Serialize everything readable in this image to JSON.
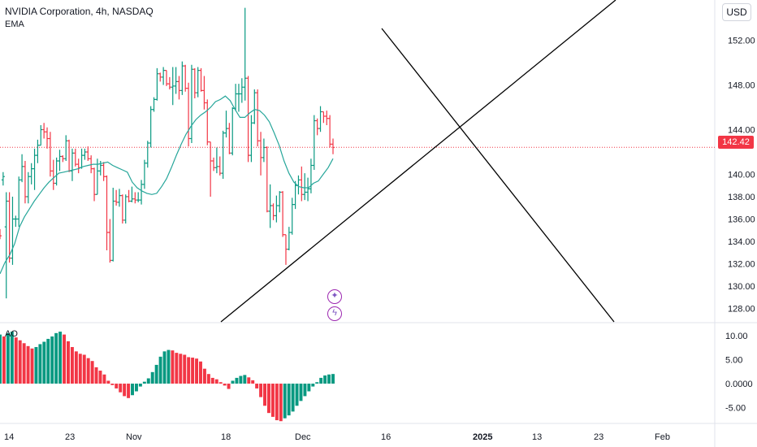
{
  "header": {
    "title": "NVIDIA Corporation, 4h, NASDAQ",
    "indicator": "EMA",
    "currency_button": "USD"
  },
  "oscillator": {
    "label": "AO"
  },
  "last_price": "142.42",
  "icons": {
    "sparkle": "sparkle-icon",
    "lightning": "lightning-icon"
  },
  "colors": {
    "up": "#089981",
    "down": "#f23645",
    "ema": "#26a69a",
    "drawing": "#000000",
    "price_line": "#f23645"
  },
  "axes": {
    "price_ticks": [
      "152.00",
      "148.00",
      "144.00",
      "140.00",
      "138.00",
      "136.00",
      "134.00",
      "132.00",
      "130.00",
      "128.00"
    ],
    "ao_ticks": [
      "10.00",
      "5.00",
      "0.0000",
      "-5.00"
    ],
    "x_ticks": [
      {
        "label": "14",
        "bold": false
      },
      {
        "label": "23",
        "bold": false
      },
      {
        "label": "Nov",
        "bold": false
      },
      {
        "label": "18",
        "bold": false
      },
      {
        "label": "Dec",
        "bold": false
      },
      {
        "label": "16",
        "bold": false
      },
      {
        "label": "2025",
        "bold": true
      },
      {
        "label": "13",
        "bold": false
      },
      {
        "label": "23",
        "bold": false
      },
      {
        "label": "Feb",
        "bold": false
      }
    ]
  },
  "chart_data": {
    "type": "ohlc",
    "price_range": [
      126.8,
      155.6
    ],
    "ao_range": [
      -8.1,
      12.5
    ],
    "candles": [
      [
        135.3,
        135.1,
        134.2,
        134.5
      ],
      [
        139.5,
        140.2,
        139,
        139.8
      ],
      [
        135.3,
        138.4,
        128.9,
        137.6
      ],
      [
        137.6,
        138.4,
        132.1,
        132.5
      ],
      [
        132.5,
        138,
        131.9,
        136
      ],
      [
        136,
        136.3,
        135.3,
        136
      ],
      [
        136,
        139.8,
        135.3,
        139.5
      ],
      [
        139.5,
        141.8,
        139.3,
        140.7
      ],
      [
        140.7,
        141.2,
        137.4,
        138
      ],
      [
        138,
        140.2,
        137.4,
        139.8
      ],
      [
        139.8,
        141,
        139.1,
        140.5
      ],
      [
        140.5,
        142.3,
        138.6,
        141.7
      ],
      [
        141.7,
        143.1,
        141,
        142.6
      ],
      [
        142.6,
        144.4,
        142.6,
        144
      ],
      [
        144,
        144.6,
        143.2,
        143.8
      ],
      [
        143.8,
        144.2,
        142.3,
        143.2
      ],
      [
        143.2,
        143.8,
        139.8,
        140.3
      ],
      [
        140.3,
        141.3,
        138.6,
        139.2
      ],
      [
        139.2,
        141.5,
        139,
        141.2
      ],
      [
        141.2,
        142.2,
        140.3,
        141.6
      ],
      [
        141.6,
        141.7,
        141.1,
        141.4
      ],
      [
        141.4,
        143.5,
        141.2,
        143
      ],
      [
        143,
        143.1,
        140.2,
        140.3
      ],
      [
        140.3,
        142.3,
        139.4,
        141.9
      ],
      [
        141.9,
        142.3,
        140.7,
        140.9
      ],
      [
        140.9,
        141.4,
        140.1,
        140.6
      ],
      [
        140.6,
        142.3,
        140.5,
        141.7
      ],
      [
        141.7,
        142.3,
        141.3,
        142
      ],
      [
        142,
        142.5,
        141.2,
        141.4
      ],
      [
        141.4,
        141.7,
        140.1,
        140.5
      ],
      [
        140.5,
        140.6,
        137.6,
        138.2
      ],
      [
        138.2,
        141.4,
        138.2,
        140.3
      ],
      [
        140.3,
        141.2,
        139.9,
        140.8
      ],
      [
        140.8,
        141.1,
        139.4,
        139.8
      ],
      [
        139.8,
        139.9,
        133.2,
        134.8
      ],
      [
        134.8,
        136,
        132.1,
        132.3
      ],
      [
        132.3,
        138.8,
        132.2,
        137.6
      ],
      [
        137.6,
        138.6,
        137.2,
        137.5
      ],
      [
        137.5,
        138.7,
        137.1,
        138.1
      ],
      [
        138.1,
        138.2,
        135.6,
        135.9
      ],
      [
        135.9,
        138.2,
        135.6,
        138
      ],
      [
        138,
        138.6,
        137.5,
        137.6
      ],
      [
        137.6,
        138.9,
        137.5,
        137.8
      ],
      [
        137.8,
        138.4,
        137.4,
        137.7
      ],
      [
        137.7,
        138.4,
        137.5,
        137.7
      ],
      [
        137.7,
        139.5,
        137.3,
        139.1
      ],
      [
        139.1,
        141.3,
        138.7,
        141
      ],
      [
        141,
        143,
        140.6,
        142.8
      ],
      [
        142.8,
        146.1,
        142.4,
        145.8
      ],
      [
        145.8,
        146.9,
        145.6,
        146.7
      ],
      [
        146.7,
        149.5,
        146.6,
        149
      ],
      [
        149,
        149.1,
        148.3,
        148.7
      ],
      [
        148.7,
        149.6,
        148,
        149.3
      ],
      [
        149.3,
        149.3,
        147.9,
        148.1
      ],
      [
        148.1,
        148.7,
        147.6,
        147.8
      ],
      [
        147.8,
        149.6,
        146.2,
        147.9
      ],
      [
        147.9,
        149.6,
        147.2,
        148.3
      ],
      [
        148.3,
        148.8,
        146.7,
        147.5
      ],
      [
        147.5,
        150.1,
        147.1,
        149.7
      ],
      [
        149.7,
        149.8,
        147.4,
        147.7
      ],
      [
        147.7,
        148.2,
        142.5,
        143.2
      ],
      [
        143.2,
        149.8,
        142.8,
        149.4
      ],
      [
        149.4,
        149.5,
        146.8,
        147.3
      ],
      [
        147.3,
        149.6,
        146.9,
        149.3
      ],
      [
        149.3,
        149.5,
        147.4,
        147.5
      ],
      [
        147.5,
        148.8,
        145.8,
        146.4
      ],
      [
        146.4,
        146.7,
        142.6,
        142.9
      ],
      [
        142.9,
        142.9,
        138,
        141.2
      ],
      [
        141.2,
        141.5,
        140.3,
        140.6
      ],
      [
        140.6,
        142.4,
        140.1,
        140.7
      ],
      [
        140.7,
        141.6,
        139.9,
        140.1
      ],
      [
        140.1,
        143.9,
        139.6,
        143.7
      ],
      [
        143.7,
        145.7,
        143.3,
        144.1
      ],
      [
        144.1,
        144.6,
        141.8,
        141.9
      ],
      [
        141.9,
        146,
        141.7,
        145.9
      ],
      [
        145.9,
        148.1,
        145.7,
        147.2
      ],
      [
        147.2,
        148.1,
        145.6,
        147.2
      ],
      [
        147.2,
        148.6,
        146.4,
        147.8
      ],
      [
        147.8,
        154.9,
        146.6,
        148.6
      ],
      [
        148.6,
        148.8,
        141.1,
        141.7
      ],
      [
        141.7,
        145.3,
        141.1,
        144.6
      ],
      [
        144.6,
        147.6,
        144.5,
        147.3
      ],
      [
        147.3,
        147.6,
        142.5,
        143
      ],
      [
        143,
        143.8,
        139.9,
        141.5
      ],
      [
        141.5,
        143.2,
        141.1,
        142.4
      ],
      [
        142.4,
        142.5,
        136.6,
        136.7
      ],
      [
        136.7,
        139.1,
        135.2,
        137.2
      ],
      [
        137.2,
        137.4,
        135.9,
        136.3
      ],
      [
        136.3,
        138.1,
        135.7,
        137.2
      ],
      [
        137.2,
        138.5,
        136.6,
        138.4
      ],
      [
        138.4,
        138.5,
        134.4,
        134.6
      ],
      [
        134.6,
        134.6,
        131.9,
        133.3
      ],
      [
        133.3,
        135.3,
        133.2,
        134.8
      ],
      [
        134.8,
        137.9,
        134.6,
        137.3
      ],
      [
        137.3,
        139.4,
        136.9,
        139
      ],
      [
        139,
        139.9,
        138.2,
        139.5
      ],
      [
        139.5,
        140.7,
        137.6,
        138.2
      ],
      [
        138.2,
        140.1,
        137.7,
        138.4
      ],
      [
        138.4,
        139.7,
        137.6,
        138.7
      ],
      [
        138.7,
        141.4,
        138.3,
        140.8
      ],
      [
        140.8,
        145.3,
        140.4,
        144.8
      ],
      [
        144.8,
        145,
        143.5,
        144.1
      ],
      [
        144.1,
        146.1,
        143.8,
        145.6
      ],
      [
        145.6,
        145.6,
        144.6,
        145.2
      ],
      [
        145.2,
        145.7,
        144.4,
        145
      ],
      [
        145,
        145.3,
        142.4,
        142.7
      ],
      [
        142.7,
        143.2,
        141.8,
        142.4
      ]
    ],
    "ema": [
      131.1,
      132.1,
      132.8,
      133.8,
      135.3,
      136.2,
      136.9,
      137.6,
      138.2,
      138.8,
      139.3,
      139.7,
      140.1,
      140.2,
      140.3,
      140.4,
      140.5,
      140.7,
      140.8,
      140.9,
      140.9,
      141,
      141.1,
      140.8,
      140.6,
      140.4,
      140.2,
      139.3,
      138.8,
      138.5,
      138.3,
      138.2,
      138.3,
      138.9,
      139.6,
      140.6,
      141.7,
      142.7,
      143.6,
      144.3,
      144.9,
      145.3,
      145.6,
      146,
      146.5,
      146.7,
      147,
      146.6,
      145.8,
      145.1,
      145.1,
      145.5,
      145.8,
      145.7,
      145.3,
      144.7,
      143.7,
      142.6,
      141.2,
      140.1,
      139.3,
      138.9,
      138.8,
      138.8,
      139.2,
      139.4,
      140,
      140.6,
      141.4
    ],
    "ao": [
      10.2,
      9.8,
      10.5,
      10.8,
      9.6,
      9.0,
      8.4,
      7.8,
      7.3,
      7.6,
      8.2,
      8.7,
      9.3,
      9.8,
      10.5,
      10.8,
      10.2,
      8.8,
      7.6,
      6.7,
      6.2,
      6.0,
      5.3,
      4.7,
      3.4,
      2.7,
      1.9,
      0.6,
      -0.3,
      -1.0,
      -1.8,
      -2.6,
      -3.0,
      -2.4,
      -1.6,
      -0.6,
      0.4,
      1.1,
      2.4,
      3.9,
      5.6,
      6.7,
      7.0,
      6.9,
      6.4,
      6.2,
      6.0,
      5.5,
      5.4,
      5.2,
      4.6,
      3.1,
      2.0,
      1.2,
      0.9,
      0.3,
      -0.4,
      -1.1,
      0.6,
      1.2,
      1.6,
      1.8,
      1.3,
      0.7,
      -1.0,
      -2.8,
      -4.6,
      -6.1,
      -6.9,
      -7.6,
      -7.8,
      -7.2,
      -6.6,
      -5.8,
      -4.6,
      -3.6,
      -2.6,
      -1.6,
      -0.6,
      0.3,
      1.2,
      1.7,
      1.9,
      2.0
    ]
  }
}
